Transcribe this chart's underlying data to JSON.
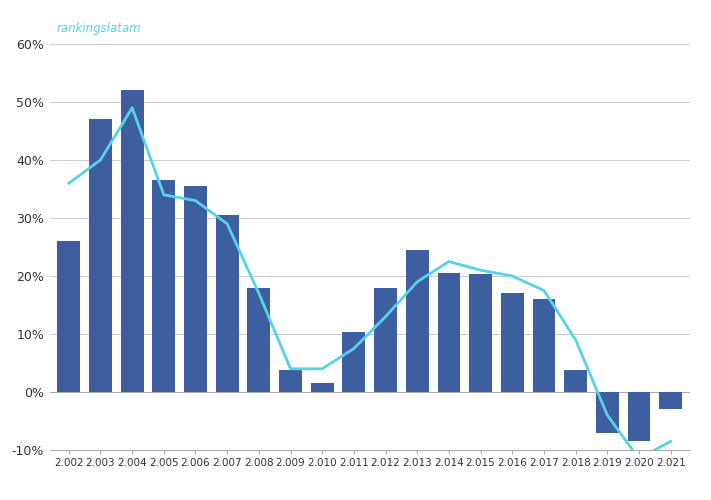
{
  "years": [
    2002,
    2003,
    2004,
    2005,
    2006,
    2007,
    2008,
    2009,
    2010,
    2011,
    2012,
    2013,
    2014,
    2015,
    2016,
    2017,
    2018,
    2019,
    2020,
    2021
  ],
  "bar_values": [
    0.26,
    0.47,
    0.52,
    0.365,
    0.355,
    0.305,
    0.18,
    0.038,
    0.016,
    0.103,
    0.18,
    0.245,
    0.205,
    0.203,
    0.17,
    0.16,
    0.038,
    -0.07,
    -0.085,
    -0.03
  ],
  "line_values": [
    0.36,
    0.4,
    0.49,
    0.34,
    0.33,
    0.29,
    0.17,
    0.04,
    0.04,
    0.075,
    0.13,
    0.19,
    0.225,
    0.21,
    0.2,
    0.175,
    0.09,
    -0.04,
    -0.115,
    -0.085
  ],
  "bar_color": "#3d5fa0",
  "line_color": "#55d4e8",
  "background_color": "#ffffff",
  "grid_color": "#cccccc",
  "watermark_text": "rankingslatam",
  "watermark_color": "#55d4e8",
  "ylim": [
    -0.1,
    0.65
  ],
  "yticks": [
    -0.1,
    0.0,
    0.1,
    0.2,
    0.3,
    0.4,
    0.5,
    0.6
  ],
  "x_labels": [
    "2.002",
    "2.003",
    "2.004",
    "2.005",
    "2.006",
    "2.007",
    "2.008",
    "2.009",
    "2.010",
    "2.011",
    "2.012",
    "2.013",
    "2.014",
    "2.015",
    "2.016",
    "2.017",
    "2.018",
    "2.019",
    "2.020",
    "2.021"
  ]
}
